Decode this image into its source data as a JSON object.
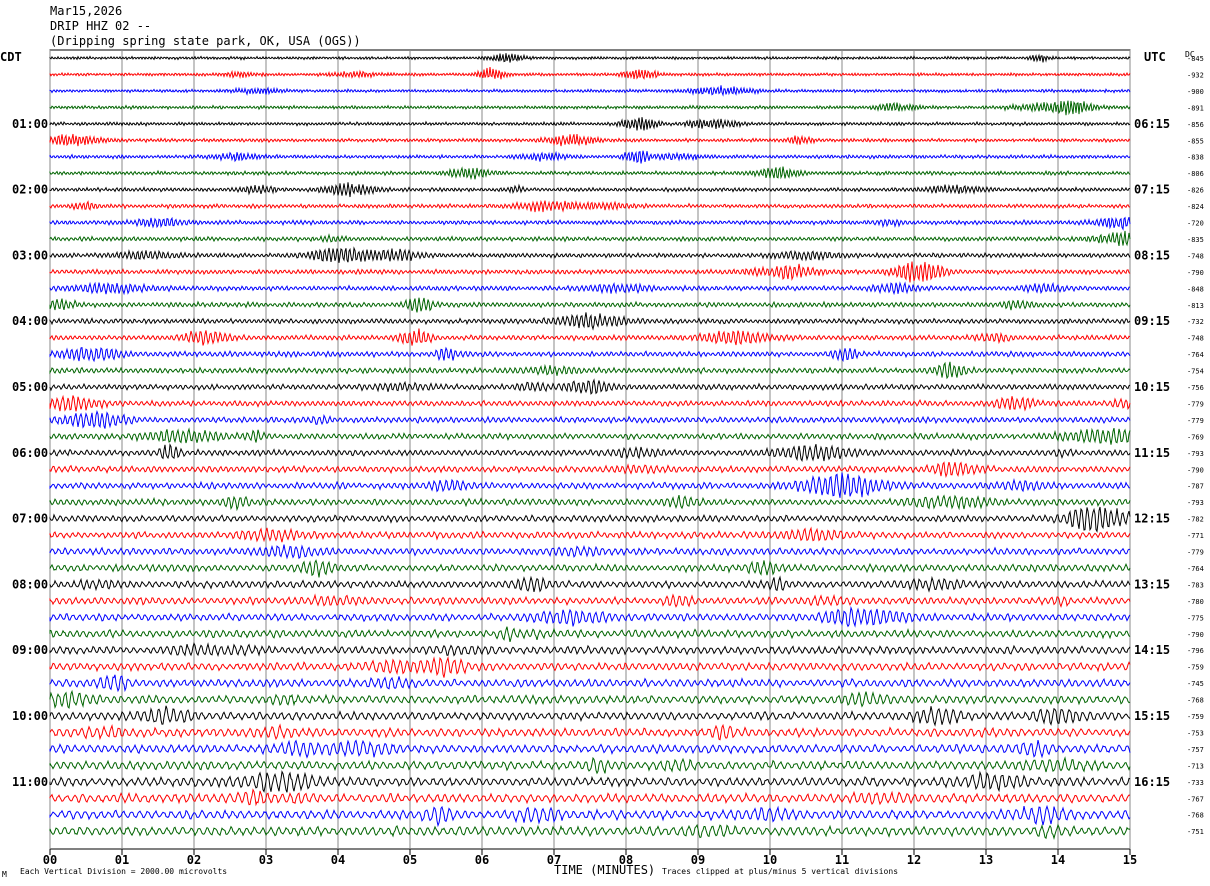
{
  "header": {
    "date": "Mar15,2026",
    "station": "DRIP HHZ 02 --",
    "location": "(Dripping spring state park, OK, USA (OGS))"
  },
  "left_label": "CDT",
  "right_label": "UTC",
  "dc_label": "DC",
  "footer": {
    "scale_note": "Each Vertical Division = 2000.00 microvolts",
    "clip_note": "Traces clipped at plus/minus 5 vertical divisions",
    "corner_mark": "M"
  },
  "chart_data": {
    "type": "line",
    "title": "",
    "xlabel": "TIME (MINUTES)",
    "ylabel": "",
    "xlim": [
      0,
      15
    ],
    "x_ticks": [
      "00",
      "01",
      "02",
      "03",
      "04",
      "05",
      "06",
      "07",
      "08",
      "09",
      "10",
      "11",
      "12",
      "13",
      "14",
      "15"
    ],
    "trace_colors": [
      "#000000",
      "#ff0000",
      "#0000ff",
      "#006400"
    ],
    "traces_per_hour": 4,
    "minutes_per_trace": 15,
    "left_hour_labels": [
      "01:00",
      "02:00",
      "03:00",
      "04:00",
      "05:00",
      "06:00",
      "07:00",
      "08:00",
      "09:00",
      "10:00",
      "11:00"
    ],
    "right_hour_labels": [
      "06:15",
      "07:15",
      "08:15",
      "09:15",
      "10:15",
      "11:15",
      "12:15",
      "13:15",
      "14:15",
      "15:15",
      "16:15"
    ],
    "dc_offsets": [
      "-845",
      "-932",
      "-900",
      "-891",
      "-856",
      "-855",
      "-838",
      "-806",
      "-826",
      "-824",
      "-720",
      "-835",
      "-748",
      "-790",
      "-848",
      "-813",
      "-732",
      "-748",
      "-764",
      "-754",
      "-756",
      "-779",
      "-779",
      "-769",
      "-793",
      "-790",
      "-787",
      "-793",
      "-782",
      "-771",
      "-779",
      "-764",
      "-783",
      "-780",
      "-775",
      "-790",
      "-796",
      "-759",
      "-745",
      "-768",
      "-759",
      "-753",
      "-757",
      "-713",
      "-733",
      "-767",
      "-768",
      "-751"
    ]
  }
}
